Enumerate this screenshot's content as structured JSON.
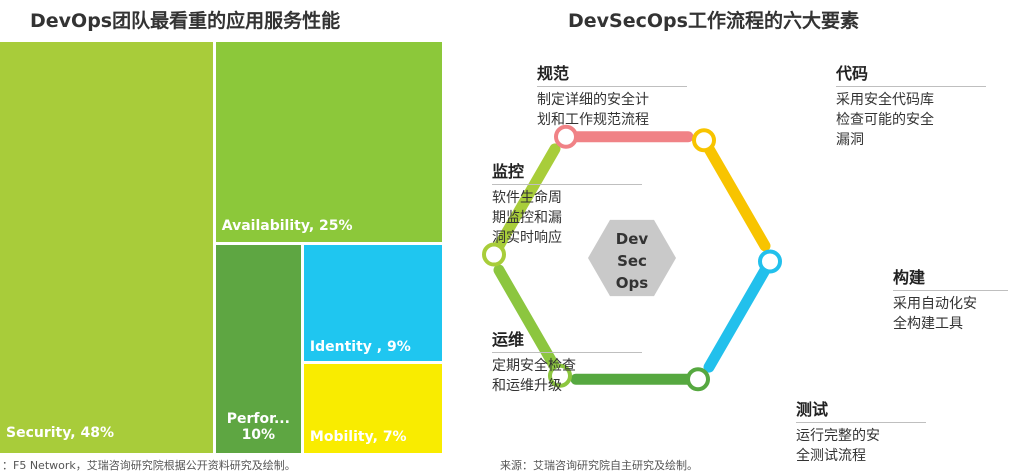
{
  "treemap": {
    "title": "DevOps团队最看重的应用服务性能",
    "source": "：F5 Network，艾瑞咨询研究院根据公开资料研究及绘制。"
  },
  "chart_data": [
    {
      "type": "treemap",
      "title": "DevOps团队最看重的应用服务性能",
      "items": [
        {
          "label": "Security, 48%",
          "name": "Security",
          "value": 48,
          "color": "#a8cc3a"
        },
        {
          "label": "Availability, 25%",
          "name": "Availability",
          "value": 25,
          "color": "#8cc83a"
        },
        {
          "label": "Perfor...\n10%",
          "name": "Performance",
          "value": 10,
          "color": "#5ea642"
        },
        {
          "label": "Identity , 9%",
          "name": "Identity",
          "value": 9,
          "color": "#1fc6f0"
        },
        {
          "label": "Mobility, 7%",
          "name": "Mobility",
          "value": 7,
          "color": "#f9ec00"
        }
      ]
    }
  ],
  "flow": {
    "title": "DevSecOps工作流程的六大要素",
    "center": [
      "Dev",
      "Sec",
      "Ops"
    ],
    "source": "来源：艾瑞咨询研究院自主研究及绘制。",
    "steps": [
      {
        "title": "规范",
        "desc": [
          "制定详细的安全计",
          "划和工作规范流程"
        ],
        "color": "#f08286"
      },
      {
        "title": "代码",
        "desc": [
          "采用安全代码库",
          "检查可能的安全",
          "漏洞"
        ],
        "color": "#f8c400"
      },
      {
        "title": "构建",
        "desc": [
          "采用自动化安",
          "全构建工具"
        ],
        "color": "#22c0ec"
      },
      {
        "title": "测试",
        "desc": [
          "运行完整的安",
          "全测试流程"
        ],
        "color": "#56a840"
      },
      {
        "title": "运维",
        "desc": [
          "定期安全检查",
          "和运维升级"
        ],
        "color": "#8cc63f"
      },
      {
        "title": "监控",
        "desc": [
          "软件生命周",
          "期监控和漏",
          "洞实时响应"
        ],
        "color": "#a8cd3a"
      }
    ]
  }
}
